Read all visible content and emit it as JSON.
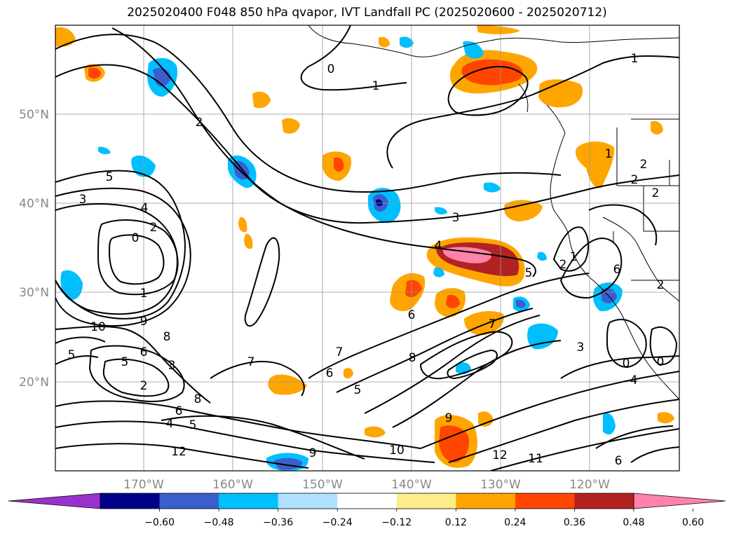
{
  "title": "2025020400 F048 850 hPa qvapor, IVT Landfall PC (2025020600 - 2025020712)",
  "lat_labels": [
    "50°N",
    "40°N",
    "30°N",
    "20°N"
  ],
  "lon_labels": [
    "170°W",
    "160°W",
    "150°W",
    "140°W",
    "130°W",
    "120°W"
  ],
  "colorbar": {
    "colors": [
      "#9932cc",
      "#00008b",
      "#3a5fcd",
      "#00bfff",
      "#b0e2ff",
      "#ffffff",
      "#ffec8b",
      "#ffa500",
      "#ff4500",
      "#b22222",
      "#ff82ab"
    ],
    "tick_labels": [
      "−0.60",
      "−0.48",
      "−0.36",
      "−0.24",
      "−0.12",
      "0.12",
      "0.24",
      "0.36",
      "0.48",
      "0.60"
    ]
  },
  "contour_labels": [
    "0",
    "1",
    "1",
    "2",
    "5",
    "3",
    "4",
    "2",
    "0",
    "3",
    "1",
    "9",
    "8",
    "10",
    "6",
    "5",
    "3",
    "2",
    "6",
    "4",
    "5",
    "8",
    "12",
    "9",
    "7",
    "6",
    "5",
    "7",
    "6",
    "8",
    "7",
    "10",
    "9",
    "12",
    "11",
    "6",
    "5",
    "3",
    "0",
    "0",
    "4",
    "2",
    "2",
    "2",
    "1",
    "6",
    "2",
    "1",
    "2",
    "5",
    "4"
  ]
}
